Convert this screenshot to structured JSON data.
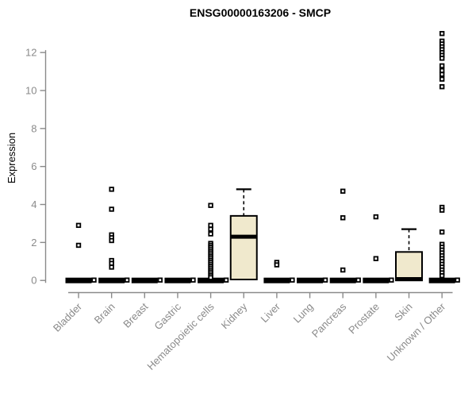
{
  "header": {
    "title": "ENSG00000163206 - SMCP"
  },
  "colors": {
    "background": "#ffffff",
    "title": "#000000",
    "axis": "#8a8a8a",
    "axis_text": "#8a8a8a",
    "box_fill": "#f0e9cd",
    "box_stroke": "#000000",
    "point_fill": "#ffffff",
    "point_stroke": "#000000"
  },
  "chart_data": {
    "type": "boxplot",
    "title": "ENSG00000163206 - SMCP",
    "xlabel": "",
    "ylabel": "Expression",
    "ylim": [
      -0.65,
      13.4
    ],
    "yticks": [
      0,
      2,
      4,
      6,
      8,
      10,
      12
    ],
    "grid": false,
    "legend": null,
    "categories": [
      "Bladder",
      "Brain",
      "Breast",
      "Gastric",
      "Hematopoietic cells",
      "Kidney",
      "Liver",
      "Lung",
      "Pancreas",
      "Prostate",
      "Skin",
      "Unknown / Other"
    ],
    "boxes": [
      {
        "category": "Bladder",
        "q1": 0,
        "median": 0,
        "q3": 0,
        "whisker_low": 0,
        "whisker_high": 0,
        "zero_nub": true,
        "outliers": [
          2.9,
          1.85
        ]
      },
      {
        "category": "Brain",
        "q1": 0,
        "median": 0,
        "q3": 0,
        "whisker_low": 0,
        "whisker_high": 0,
        "zero_nub": true,
        "outliers": [
          4.8,
          3.75,
          2.4,
          2.25,
          2.1,
          1.05,
          0.9,
          0.7
        ]
      },
      {
        "category": "Breast",
        "q1": 0,
        "median": 0,
        "q3": 0,
        "whisker_low": 0,
        "whisker_high": 0,
        "zero_nub": true,
        "outliers": []
      },
      {
        "category": "Gastric",
        "q1": 0,
        "median": 0,
        "q3": 0,
        "whisker_low": 0,
        "whisker_high": 0,
        "zero_nub": true,
        "outliers": []
      },
      {
        "category": "Hematopoietic cells",
        "q1": 0,
        "median": 0,
        "q3": 0,
        "whisker_low": 0,
        "whisker_high": 0,
        "zero_nub": true,
        "outliers": [
          3.95,
          2.9,
          2.7,
          2.45,
          1.95,
          1.85,
          1.75,
          1.65,
          1.55,
          1.45,
          1.35,
          1.25,
          1.15,
          1.05,
          0.95,
          0.85,
          0.75,
          0.65,
          0.55,
          0.45,
          0.35,
          0.25,
          0.15
        ]
      },
      {
        "category": "Kidney",
        "q1": 0.05,
        "median": 2.3,
        "q3": 3.4,
        "whisker_low": 0.05,
        "whisker_high": 4.8,
        "zero_nub": false,
        "outliers": []
      },
      {
        "category": "Liver",
        "q1": 0,
        "median": 0,
        "q3": 0,
        "whisker_low": 0,
        "whisker_high": 0,
        "zero_nub": true,
        "outliers": [
          0.95,
          0.82
        ]
      },
      {
        "category": "Lung",
        "q1": 0,
        "median": 0,
        "q3": 0,
        "whisker_low": 0,
        "whisker_high": 0,
        "zero_nub": true,
        "outliers": []
      },
      {
        "category": "Pancreas",
        "q1": 0,
        "median": 0,
        "q3": 0,
        "whisker_low": 0,
        "whisker_high": 0,
        "zero_nub": true,
        "outliers": [
          4.7,
          3.3,
          0.55
        ]
      },
      {
        "category": "Prostate",
        "q1": 0,
        "median": 0,
        "q3": 0,
        "whisker_low": 0,
        "whisker_high": 0,
        "zero_nub": true,
        "outliers": [
          3.35,
          1.15
        ]
      },
      {
        "category": "Skin",
        "q1": 0,
        "median": 0.07,
        "q3": 1.5,
        "whisker_low": 0,
        "whisker_high": 2.7,
        "zero_nub": false,
        "outliers": []
      },
      {
        "category": "Unknown / Other",
        "q1": 0,
        "median": 0,
        "q3": 0,
        "whisker_low": 0,
        "whisker_high": 0,
        "zero_nub": true,
        "outliers": [
          13.0,
          12.6,
          12.45,
          12.3,
          12.15,
          12.0,
          11.85,
          11.7,
          11.3,
          11.05,
          10.85,
          10.6,
          10.2,
          3.85,
          3.7,
          2.55,
          1.9,
          1.75,
          1.6,
          1.45,
          1.3,
          1.15,
          1.0,
          0.85,
          0.7,
          0.55,
          0.4,
          0.25
        ]
      }
    ]
  }
}
